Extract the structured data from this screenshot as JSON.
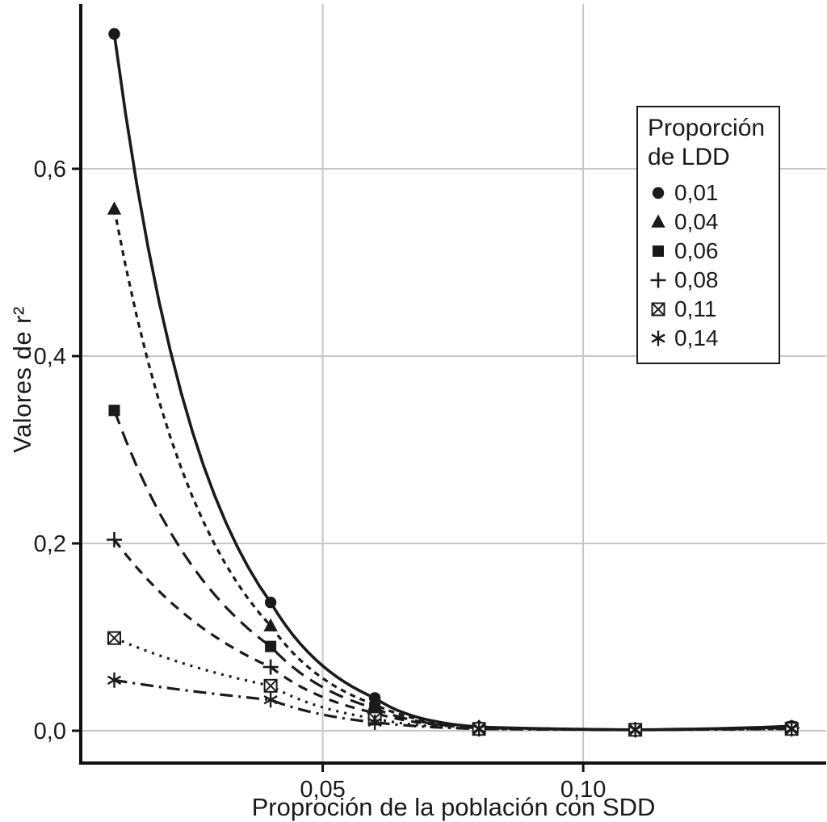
{
  "figure": {
    "background": "#ffffff",
    "ylabel": "Valores de r²",
    "xlabel": "Proproción de la población con SDD"
  },
  "chart_data": {
    "type": "line",
    "title": "",
    "xlabel": "Proproción de la población con SDD",
    "ylabel": "Valores de r²",
    "x": [
      0.01,
      0.04,
      0.06,
      0.08,
      0.11,
      0.14
    ],
    "series": [
      {
        "label": "0,01",
        "marker": "circle",
        "dash": "",
        "values": [
          0.744,
          0.137,
          0.035,
          0.004,
          0.001,
          0.005
        ]
      },
      {
        "label": "0,04",
        "marker": "triangle",
        "dash": "7 6",
        "values": [
          0.557,
          0.112,
          0.028,
          0.004,
          0.001,
          0.004
        ]
      },
      {
        "label": "0,06",
        "marker": "square",
        "dash": "18 10",
        "values": [
          0.342,
          0.09,
          0.024,
          0.003,
          0.001,
          0.004
        ]
      },
      {
        "label": "0,08",
        "marker": "plus",
        "dash": "12 9",
        "values": [
          0.204,
          0.068,
          0.019,
          0.003,
          0.001,
          0.003
        ]
      },
      {
        "label": "0,11",
        "marker": "box-x",
        "dash": "3 7",
        "values": [
          0.099,
          0.048,
          0.013,
          0.002,
          0.001,
          0.002
        ]
      },
      {
        "label": "0,14",
        "marker": "asterisk",
        "dash": "16 7 3 7",
        "values": [
          0.054,
          0.033,
          0.009,
          0.002,
          0.001,
          0.002
        ]
      }
    ],
    "xlim": [
      0.00356,
      0.14664
    ],
    "ylim": [
      -0.0345,
      0.7759
    ],
    "xticks": {
      "values": [
        0.05,
        0.1
      ],
      "labels": [
        "0,05",
        "0,10"
      ]
    },
    "yticks": {
      "values": [
        0.0,
        0.2,
        0.4,
        0.6
      ],
      "labels": [
        "0,0",
        "0,2",
        "0,4",
        "0,6"
      ]
    },
    "grid": true,
    "line_color": "#1a1a1a",
    "grid_color": "#c6c6c6",
    "legend": {
      "title_lines": [
        "Proporción",
        "de LDD"
      ],
      "position": "upper-right"
    }
  }
}
